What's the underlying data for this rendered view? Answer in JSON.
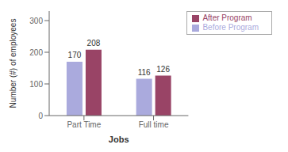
{
  "chart_data": {
    "type": "bar",
    "categories": [
      "Part Time",
      "Full time"
    ],
    "series": [
      {
        "name": "Before Program",
        "color": "#aaaadd",
        "values": [
          170,
          116
        ]
      },
      {
        "name": "After Program",
        "color": "#994466",
        "values": [
          208,
          126
        ]
      }
    ],
    "xlabel": "Jobs",
    "ylabel": "Number (#) of employees",
    "ylim": [
      0,
      330
    ],
    "yticks": [
      0,
      100,
      200,
      300
    ],
    "grid": false,
    "legend": "upper right",
    "data_labels": true
  }
}
